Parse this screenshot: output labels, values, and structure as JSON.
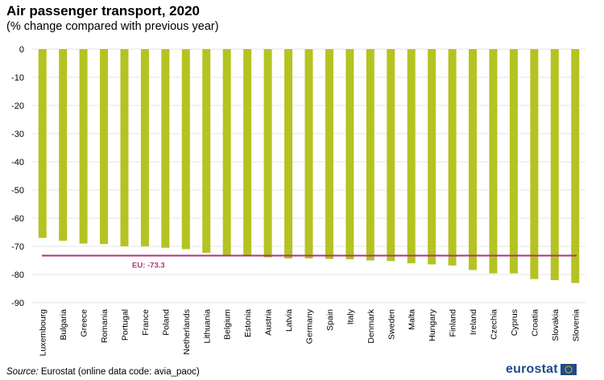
{
  "title": "Air passenger transport, 2020",
  "subtitle": "(% change compared with previous year)",
  "source": {
    "label": "Source:",
    "text": "Eurostat (online data code: avia_paoc)"
  },
  "logo": {
    "text": "eurostat",
    "flag_icon": "eu-flag-icon"
  },
  "colors": {
    "bar": "#b5c322",
    "reference_line": "#b0307a",
    "grid": "#e6e6e6"
  },
  "chart_data": {
    "type": "bar",
    "categories": [
      "Luxembourg",
      "Bulgaria",
      "Greece",
      "Romania",
      "Portugal",
      "France",
      "Poland",
      "Netherlands",
      "Lithuania",
      "Belgium",
      "Estonia",
      "Austria",
      "Latvia",
      "Germany",
      "Spain",
      "Italy",
      "Denmark",
      "Sweden",
      "Malta",
      "Hungary",
      "Finland",
      "Ireland",
      "Czechia",
      "Cyprus",
      "Croatia",
      "Slovakia",
      "Slovenia"
    ],
    "values": [
      -67,
      -68,
      -69,
      -69.2,
      -70,
      -70,
      -70.5,
      -71,
      -72.3,
      -73.2,
      -73.5,
      -73.9,
      -74.3,
      -74.3,
      -74.5,
      -74.6,
      -75,
      -75.2,
      -76,
      -76.4,
      -76.8,
      -78.4,
      -79.6,
      -79.6,
      -81.6,
      -82,
      -83
    ],
    "ylim": [
      -90,
      0
    ],
    "yticks": [
      0,
      -10,
      -20,
      -30,
      -40,
      -50,
      -60,
      -70,
      -80,
      -90
    ],
    "grid": true,
    "reference_line": {
      "label": "EU: -73.3",
      "value": -73.3
    }
  }
}
